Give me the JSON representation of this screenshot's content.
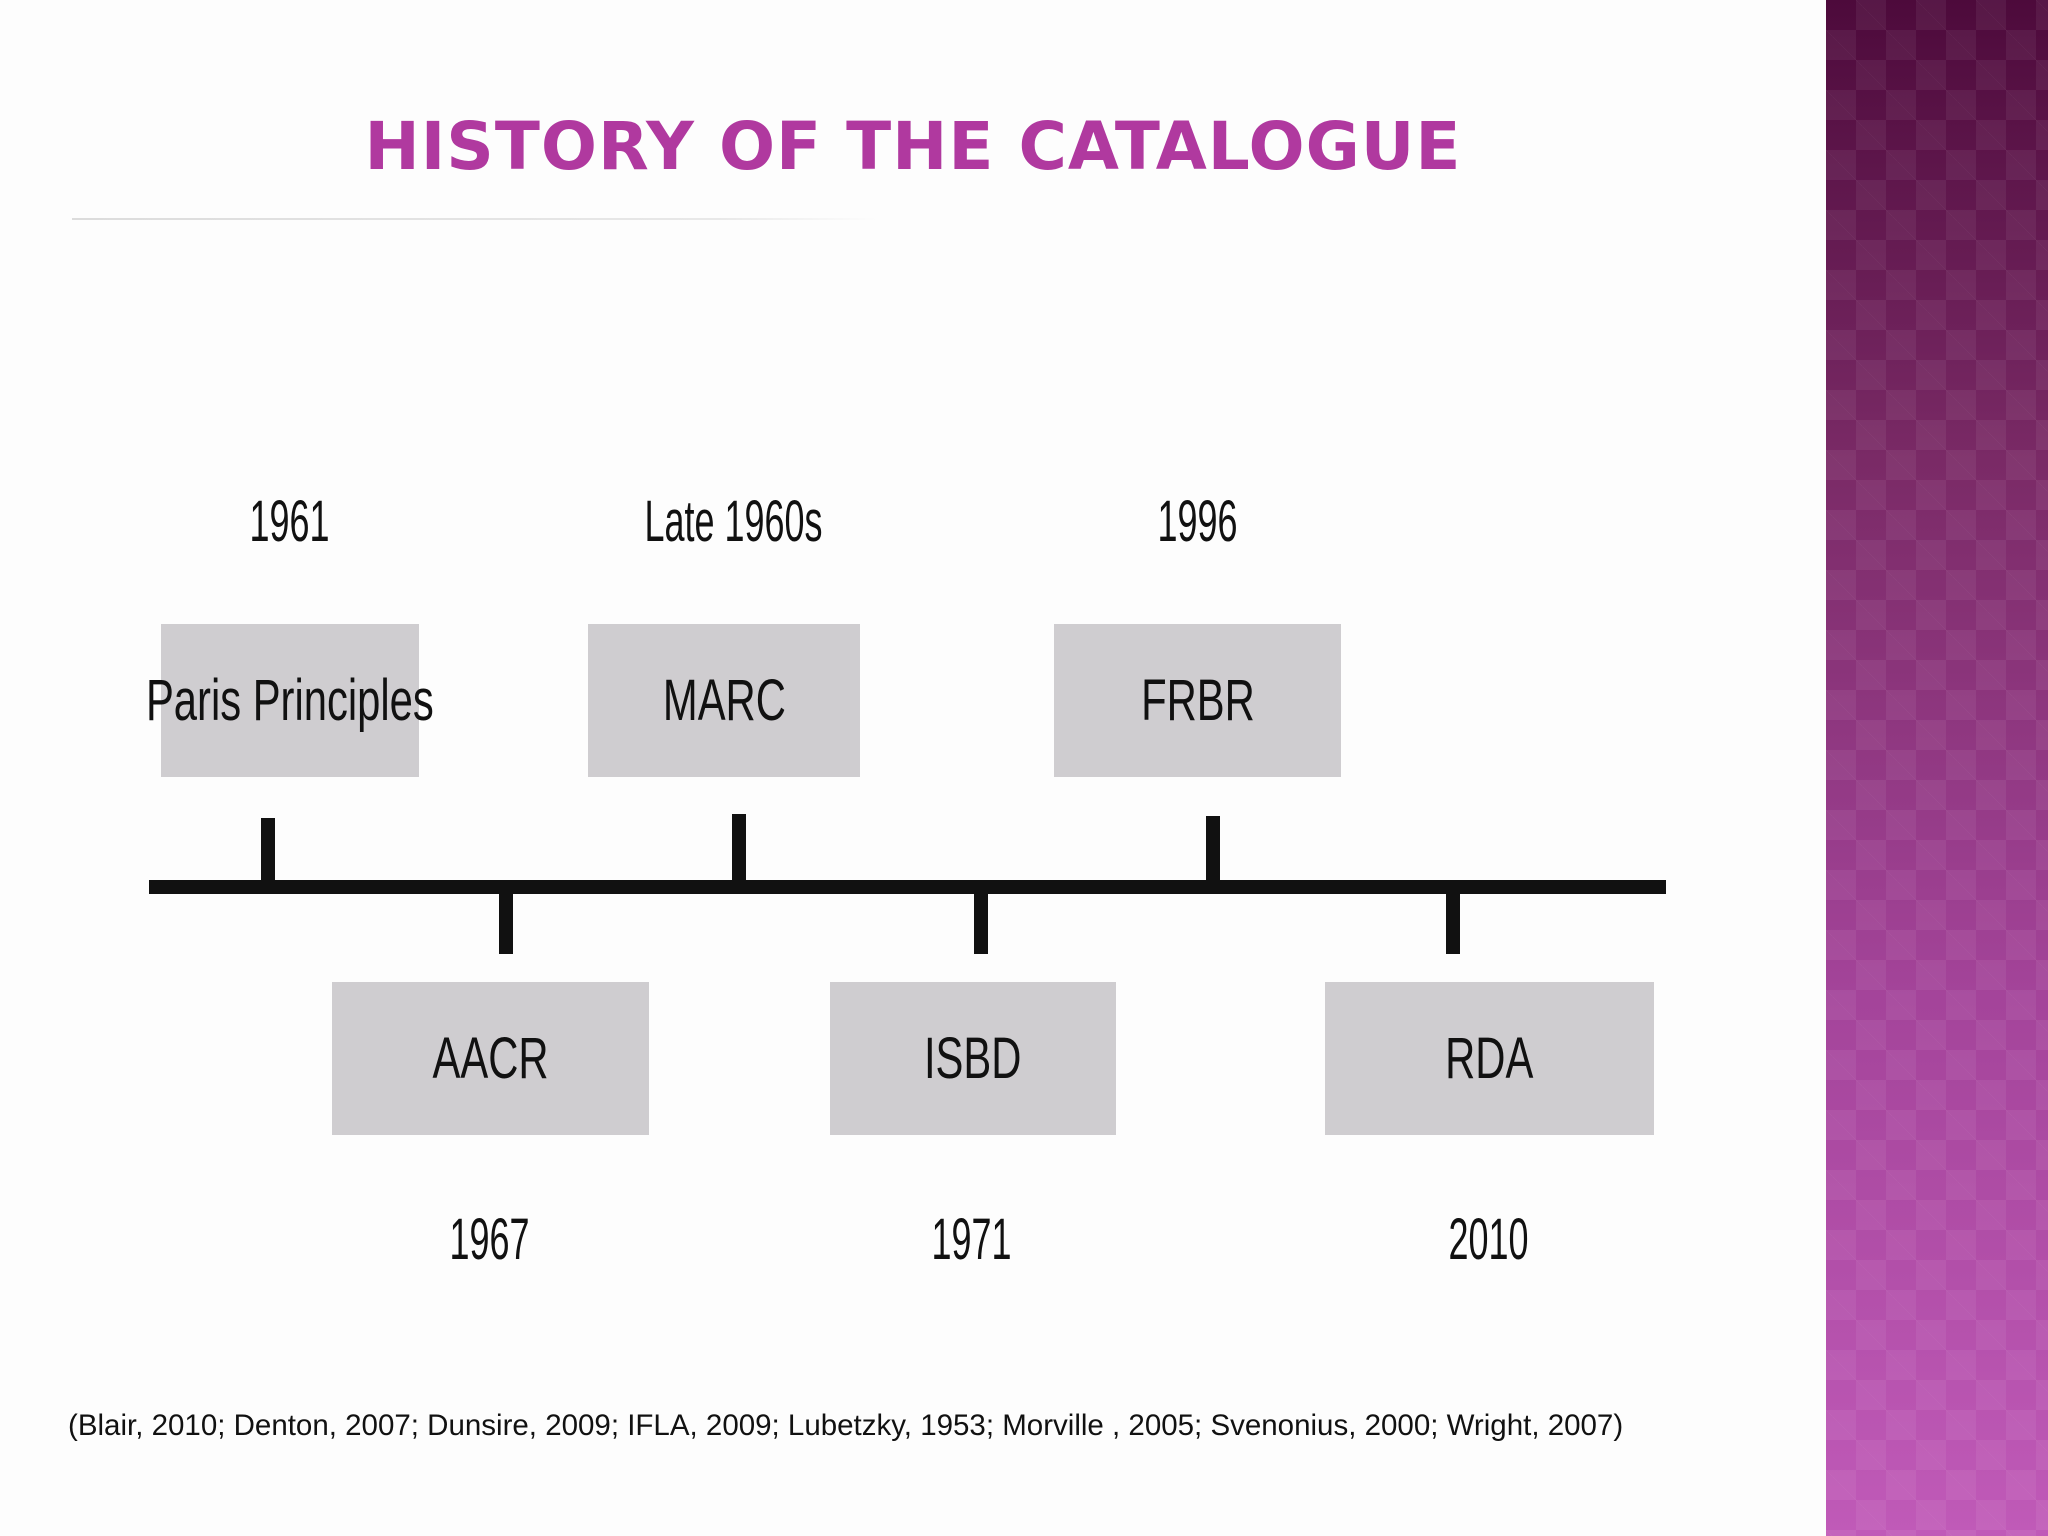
{
  "title": "HISTORY OF THE CATALOGUE",
  "colors": {
    "title": "#b0399f",
    "box_fill": "#cfcdd0",
    "axis": "#111111",
    "side_panel_top": "#4d0a3b",
    "side_panel_bottom": "#c05ab8"
  },
  "timeline": {
    "above": [
      {
        "label": "Paris Principles",
        "year": "1961"
      },
      {
        "label": "MARC",
        "year": "Late 1960s"
      },
      {
        "label": "FRBR",
        "year": "1996"
      }
    ],
    "below": [
      {
        "label": "AACR",
        "year": "1967"
      },
      {
        "label": "ISBD",
        "year": "1971"
      },
      {
        "label": "RDA",
        "year": "2010"
      }
    ]
  },
  "citation": "(Blair, 2010; Denton, 2007; Dunsire, 2009; IFLA, 2009; Lubetzky, 1953; Morville , 2005; Svenonius, 2000; Wright, 2007)"
}
